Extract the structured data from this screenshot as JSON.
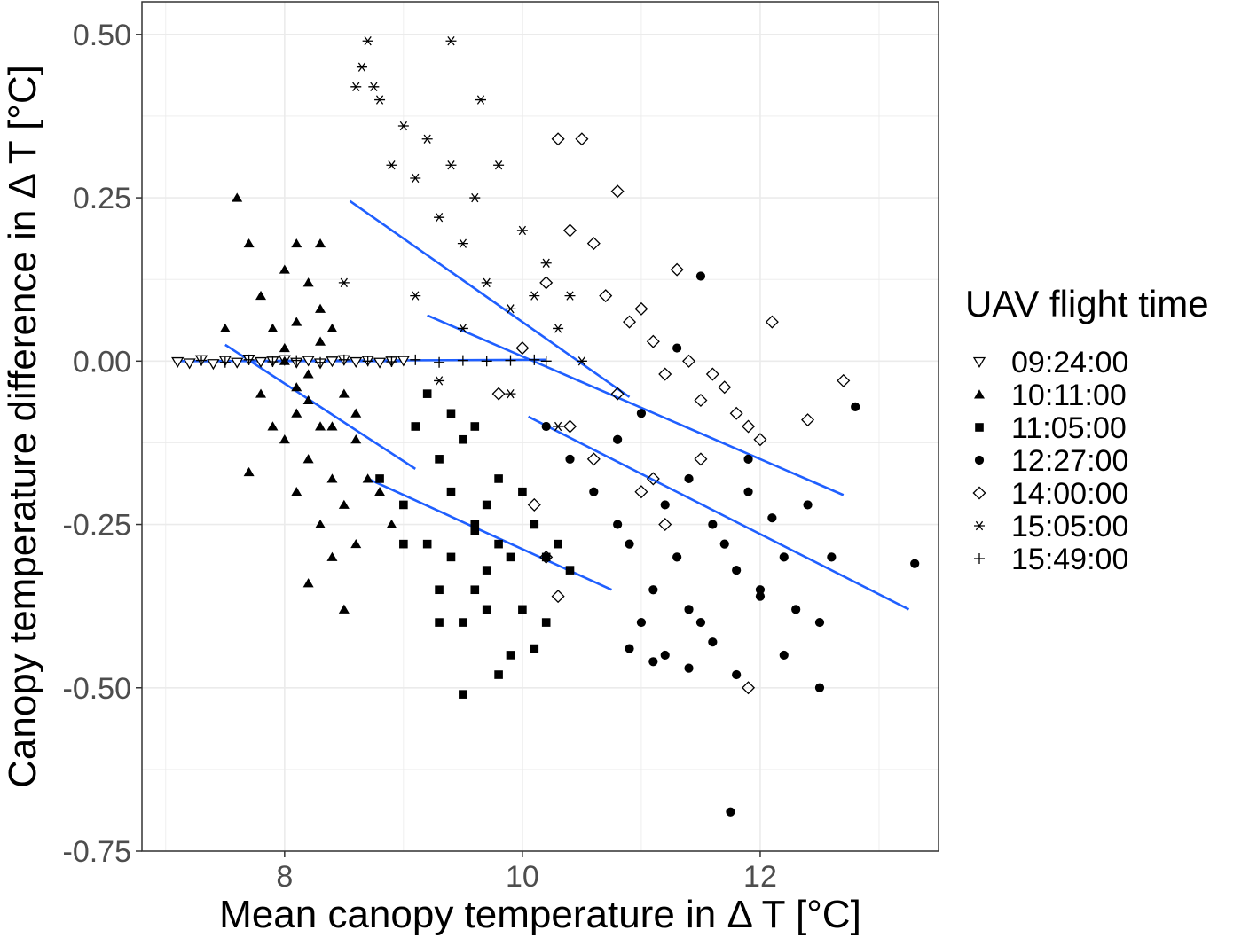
{
  "chart_data": {
    "type": "scatter",
    "title": "",
    "xlabel": "Mean canopy temperature in Δ T [°C]",
    "ylabel": "Canopy temperature difference in Δ T [°C]",
    "xlim": [
      6.8,
      13.5
    ],
    "ylim": [
      -0.75,
      0.55
    ],
    "x_ticks": [
      8,
      10,
      12
    ],
    "x_tick_labels": [
      "8",
      "10",
      "12"
    ],
    "y_ticks": [
      0.5,
      0.25,
      0.0,
      -0.25,
      -0.5,
      -0.75
    ],
    "y_tick_labels": [
      "0.50",
      "0.25",
      "0.00",
      "-0.25",
      "-0.50",
      "-0.75"
    ],
    "grid": true,
    "legend": {
      "title": "UAV flight time",
      "position": "right"
    },
    "fit_line_color": "#1f5fff",
    "point_color": "#000000",
    "series": [
      {
        "name": "09:24:00",
        "marker": "triangle-down-open",
        "x": [
          7.1,
          7.2,
          7.3,
          7.4,
          7.5,
          7.6,
          7.7,
          7.8,
          7.9,
          8.0,
          8.1,
          8.2,
          8.3,
          8.4,
          8.5,
          8.6,
          8.7,
          8.8,
          8.9,
          9.0
        ],
        "y": [
          -0.001,
          -0.003,
          0.002,
          -0.004,
          0.001,
          -0.002,
          0.003,
          -0.001,
          0.0,
          0.002,
          -0.002,
          0.001,
          -0.003,
          0.0,
          0.002,
          -0.001,
          0.001,
          -0.002,
          0.0,
          0.001
        ],
        "fit": {
          "x": [
            7.1,
            9.0
          ],
          "y": [
            0.0,
            0.0
          ]
        }
      },
      {
        "name": "10:11:00",
        "marker": "triangle-filled",
        "x": [
          7.6,
          7.7,
          7.8,
          7.8,
          7.9,
          7.9,
          8.0,
          8.0,
          8.0,
          8.1,
          8.1,
          8.1,
          8.2,
          8.2,
          8.2,
          8.3,
          8.3,
          8.3,
          8.4,
          8.4,
          8.4,
          8.5,
          8.5,
          8.6,
          8.6,
          8.7,
          8.8,
          8.9,
          7.5,
          8.1,
          8.3,
          8.5,
          8.2,
          7.7,
          8.4,
          8.0,
          8.2,
          8.3,
          8.6,
          8.1
        ],
        "y": [
          0.25,
          0.18,
          0.1,
          -0.05,
          0.05,
          -0.1,
          0.02,
          -0.12,
          0.14,
          0.06,
          -0.08,
          -0.2,
          0.12,
          -0.02,
          -0.15,
          0.08,
          -0.1,
          -0.25,
          0.05,
          -0.18,
          -0.3,
          -0.05,
          -0.22,
          -0.12,
          -0.28,
          -0.18,
          -0.2,
          -0.25,
          0.05,
          0.18,
          0.18,
          -0.38,
          -0.34,
          -0.17,
          -0.1,
          0.0,
          -0.06,
          0.03,
          -0.08,
          -0.04
        ],
        "fit": {
          "x": [
            7.5,
            9.1
          ],
          "y": [
            0.025,
            -0.165
          ]
        }
      },
      {
        "name": "11:05:00",
        "marker": "square-filled",
        "x": [
          8.8,
          9.0,
          9.1,
          9.2,
          9.3,
          9.3,
          9.4,
          9.4,
          9.5,
          9.5,
          9.6,
          9.6,
          9.7,
          9.7,
          9.8,
          9.8,
          9.9,
          9.9,
          10.0,
          10.0,
          10.1,
          10.2,
          10.3,
          10.4,
          9.2,
          9.4,
          9.6,
          9.5,
          9.8,
          10.2,
          9.0,
          9.3,
          9.7,
          10.1,
          9.6
        ],
        "y": [
          -0.18,
          -0.22,
          -0.1,
          -0.28,
          -0.15,
          -0.35,
          -0.2,
          -0.3,
          -0.12,
          -0.4,
          -0.25,
          -0.35,
          -0.22,
          -0.38,
          -0.18,
          -0.28,
          -0.3,
          -0.45,
          -0.2,
          -0.38,
          -0.25,
          -0.3,
          -0.28,
          -0.32,
          -0.05,
          -0.08,
          -0.1,
          -0.51,
          -0.48,
          -0.4,
          -0.28,
          -0.4,
          -0.32,
          -0.44,
          -0.26
        ],
        "fit": {
          "x": [
            8.7,
            10.75
          ],
          "y": [
            -0.18,
            -0.35
          ]
        }
      },
      {
        "name": "12:27:00",
        "marker": "circle-filled",
        "x": [
          10.2,
          10.4,
          10.6,
          10.8,
          10.9,
          11.0,
          11.1,
          11.2,
          11.3,
          11.4,
          11.5,
          11.6,
          11.7,
          11.8,
          11.9,
          12.0,
          12.1,
          12.2,
          12.3,
          12.4,
          12.5,
          12.6,
          12.8,
          13.3,
          10.8,
          11.0,
          11.2,
          11.4,
          11.6,
          11.8,
          12.0,
          12.2,
          11.3,
          11.5,
          11.9,
          12.5,
          11.75,
          10.9,
          11.1,
          11.4
        ],
        "y": [
          -0.1,
          -0.15,
          -0.2,
          -0.12,
          -0.28,
          -0.08,
          -0.35,
          -0.22,
          -0.3,
          -0.18,
          -0.4,
          -0.25,
          -0.28,
          -0.32,
          -0.2,
          -0.35,
          -0.24,
          -0.3,
          -0.38,
          -0.22,
          -0.4,
          -0.3,
          -0.07,
          -0.31,
          -0.25,
          -0.4,
          -0.45,
          -0.38,
          -0.43,
          -0.48,
          -0.36,
          -0.45,
          0.02,
          0.13,
          -0.15,
          -0.5,
          -0.69,
          -0.44,
          -0.46,
          -0.47
        ],
        "fit": {
          "x": [
            10.05,
            13.25
          ],
          "y": [
            -0.085,
            -0.38
          ]
        }
      },
      {
        "name": "14:00:00",
        "marker": "diamond-open",
        "x": [
          9.8,
          10.0,
          10.2,
          10.3,
          10.4,
          10.5,
          10.6,
          10.7,
          10.8,
          10.9,
          11.0,
          11.1,
          11.2,
          11.3,
          11.4,
          11.5,
          11.6,
          11.7,
          11.8,
          11.9,
          12.0,
          12.1,
          12.4,
          12.7,
          10.4,
          10.6,
          10.8,
          11.0,
          11.2,
          10.2,
          11.1,
          11.9,
          10.3,
          10.1,
          11.5
        ],
        "y": [
          -0.05,
          0.02,
          0.12,
          0.34,
          0.2,
          0.34,
          0.18,
          0.1,
          0.26,
          0.06,
          0.08,
          0.03,
          -0.02,
          0.14,
          0.0,
          -0.06,
          -0.02,
          -0.04,
          -0.08,
          -0.1,
          -0.12,
          0.06,
          -0.09,
          -0.03,
          -0.1,
          -0.15,
          -0.05,
          -0.2,
          -0.25,
          -0.3,
          -0.18,
          -0.5,
          -0.36,
          -0.22,
          -0.15
        ],
        "fit": {
          "x": [
            9.2,
            12.7
          ],
          "y": [
            0.07,
            -0.205
          ]
        }
      },
      {
        "name": "15:05:00",
        "marker": "asterisk",
        "x": [
          8.6,
          8.7,
          8.8,
          8.9,
          9.0,
          9.1,
          9.2,
          9.3,
          9.4,
          9.5,
          9.6,
          9.7,
          9.8,
          9.9,
          10.0,
          10.1,
          10.2,
          10.3,
          10.4,
          10.5,
          8.5,
          8.65,
          8.75,
          9.4,
          9.65,
          9.1,
          9.5,
          9.9,
          10.3,
          9.3
        ],
        "y": [
          0.42,
          0.49,
          0.4,
          0.3,
          0.36,
          0.28,
          0.34,
          0.22,
          0.3,
          0.18,
          0.25,
          0.12,
          0.3,
          0.08,
          0.2,
          0.1,
          0.15,
          0.05,
          0.1,
          0.0,
          0.12,
          0.45,
          0.42,
          0.49,
          0.4,
          0.1,
          0.05,
          -0.05,
          -0.1,
          -0.03
        ],
        "fit": {
          "x": [
            8.55,
            10.9
          ],
          "y": [
            0.245,
            -0.055
          ]
        }
      },
      {
        "name": "15:49:00",
        "marker": "plus",
        "x": [
          7.3,
          7.5,
          7.7,
          7.9,
          8.1,
          8.3,
          8.5,
          8.7,
          8.9,
          9.1,
          9.3,
          9.5,
          9.7,
          9.9,
          10.1,
          10.2
        ],
        "y": [
          0.001,
          -0.002,
          0.002,
          -0.001,
          0.001,
          -0.002,
          0.002,
          0.0,
          -0.001,
          0.002,
          -0.002,
          0.001,
          0.0,
          0.001,
          0.002,
          0.0
        ],
        "fit": {
          "x": [
            7.3,
            10.2
          ],
          "y": [
            0.0,
            0.002
          ]
        }
      }
    ]
  }
}
